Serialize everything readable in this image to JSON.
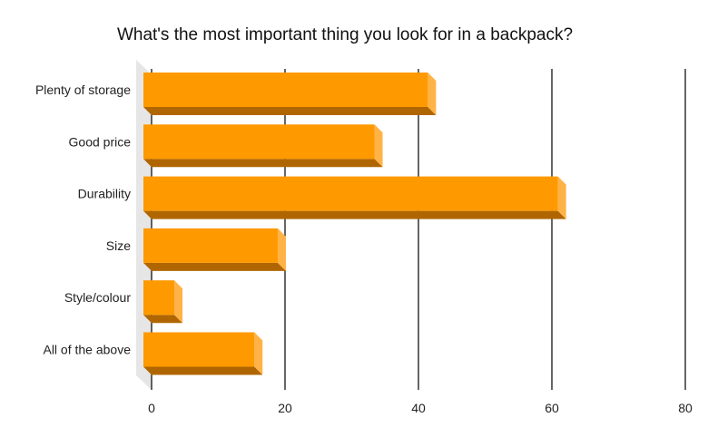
{
  "chart_data": {
    "type": "bar",
    "orientation": "horizontal",
    "style": "3d",
    "title": "What's the most important thing you look for in a backpack?",
    "xlabel": "",
    "ylabel": "",
    "categories": [
      "Plenty of storage",
      "Good price",
      "Durability",
      "Size",
      "Style/colour",
      "All of the above"
    ],
    "values": [
      41,
      33,
      60.5,
      18.5,
      3,
      15
    ],
    "xlim": [
      0,
      80
    ],
    "xticks": [
      "0",
      "20",
      "40",
      "60",
      "80"
    ],
    "grid": true,
    "legend": "none",
    "colors": {
      "bar_front": "#ff9900",
      "bar_bottom": "#b06600",
      "bar_side": "#ffb347",
      "axis_wall": "#e6e6e6",
      "grid": "#000000"
    }
  }
}
